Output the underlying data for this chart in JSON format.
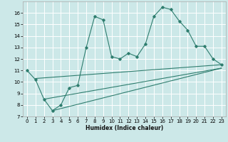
{
  "xlabel": "Humidex (Indice chaleur)",
  "background_color": "#cce8e8",
  "grid_color": "#ffffff",
  "line_color": "#2e7d6e",
  "xlim": [
    -0.5,
    23.5
  ],
  "ylim": [
    7,
    17
  ],
  "xticks": [
    0,
    1,
    2,
    3,
    4,
    5,
    6,
    7,
    8,
    9,
    10,
    11,
    12,
    13,
    14,
    15,
    16,
    17,
    18,
    19,
    20,
    21,
    22,
    23
  ],
  "yticks": [
    7,
    8,
    9,
    10,
    11,
    12,
    13,
    14,
    15,
    16
  ],
  "series1_x": [
    0,
    1,
    2,
    3,
    4,
    5,
    6,
    7,
    8,
    9,
    10,
    11,
    12,
    13,
    14,
    15,
    16,
    17,
    18,
    19,
    20,
    21,
    22,
    23
  ],
  "series1_y": [
    11.0,
    10.2,
    8.5,
    7.5,
    8.0,
    9.5,
    9.7,
    13.0,
    15.7,
    15.4,
    12.2,
    12.0,
    12.5,
    12.2,
    13.3,
    15.7,
    16.5,
    16.3,
    15.3,
    14.5,
    13.1,
    13.1,
    12.0,
    11.5
  ],
  "series2_x": [
    1,
    23
  ],
  "series2_y": [
    10.3,
    11.5
  ],
  "series3_x": [
    2,
    23
  ],
  "series3_y": [
    8.5,
    11.2
  ],
  "series4_x": [
    3,
    23
  ],
  "series4_y": [
    7.5,
    11.2
  ]
}
